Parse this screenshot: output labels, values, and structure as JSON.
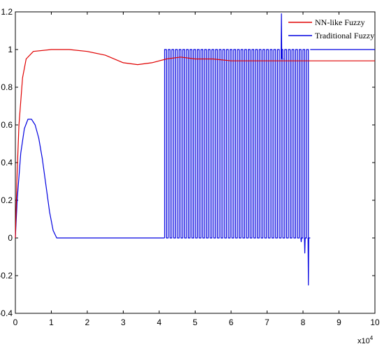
{
  "chart_data": {
    "type": "line",
    "xlim": [
      0,
      10
    ],
    "ylim": [
      -0.4,
      1.2
    ],
    "x_ticks": [
      "0",
      "1",
      "2",
      "3",
      "4",
      "5",
      "6",
      "7",
      "8",
      "9",
      "10"
    ],
    "y_ticks": [
      "-0.4",
      "-0.2",
      "0",
      "0.2",
      "0.4",
      "0.6",
      "0.8",
      "1",
      "1.2"
    ],
    "x_multiplier": "x10",
    "x_multiplier_exp": "4",
    "grid": false,
    "legend_position": "top-right",
    "series": [
      {
        "name": "NN-like Fuzzy",
        "color": "#e00000",
        "points": [
          [
            0,
            0
          ],
          [
            0.05,
            0.35
          ],
          [
            0.1,
            0.6
          ],
          [
            0.2,
            0.85
          ],
          [
            0.3,
            0.95
          ],
          [
            0.5,
            0.99
          ],
          [
            1,
            1.0
          ],
          [
            1.5,
            1.0
          ],
          [
            2,
            0.99
          ],
          [
            2.5,
            0.97
          ],
          [
            3,
            0.93
          ],
          [
            3.4,
            0.92
          ],
          [
            3.8,
            0.93
          ],
          [
            4.2,
            0.95
          ],
          [
            4.6,
            0.96
          ],
          [
            5,
            0.95
          ],
          [
            5.5,
            0.95
          ],
          [
            6,
            0.94
          ],
          [
            7,
            0.94
          ],
          [
            8,
            0.94
          ],
          [
            9,
            0.94
          ],
          [
            10,
            0.94
          ]
        ]
      },
      {
        "name": "Traditional Fuzzy",
        "color": "#0000e0",
        "segments": [
          [
            [
              0,
              0
            ],
            [
              0.05,
              0.2
            ],
            [
              0.15,
              0.45
            ],
            [
              0.25,
              0.58
            ],
            [
              0.35,
              0.63
            ],
            [
              0.45,
              0.63
            ],
            [
              0.55,
              0.6
            ],
            [
              0.65,
              0.53
            ],
            [
              0.75,
              0.42
            ],
            [
              0.85,
              0.28
            ],
            [
              0.95,
              0.14
            ],
            [
              1.05,
              0.04
            ],
            [
              1.15,
              0.0
            ],
            [
              4.15,
              0.0
            ]
          ]
        ],
        "square_wave": {
          "x_start": 4.15,
          "x_end": 8.2,
          "cycles": 40,
          "high": 1.0,
          "low": 0.0
        },
        "spikes": [
          [
            7.4,
            1.19
          ],
          [
            7.45,
            0.95
          ],
          [
            7.95,
            -0.02
          ],
          [
            8.05,
            -0.08
          ],
          [
            8.15,
            -0.25
          ]
        ],
        "tail": [
          [
            8.2,
            1.0
          ],
          [
            10,
            1.0
          ]
        ]
      }
    ]
  }
}
